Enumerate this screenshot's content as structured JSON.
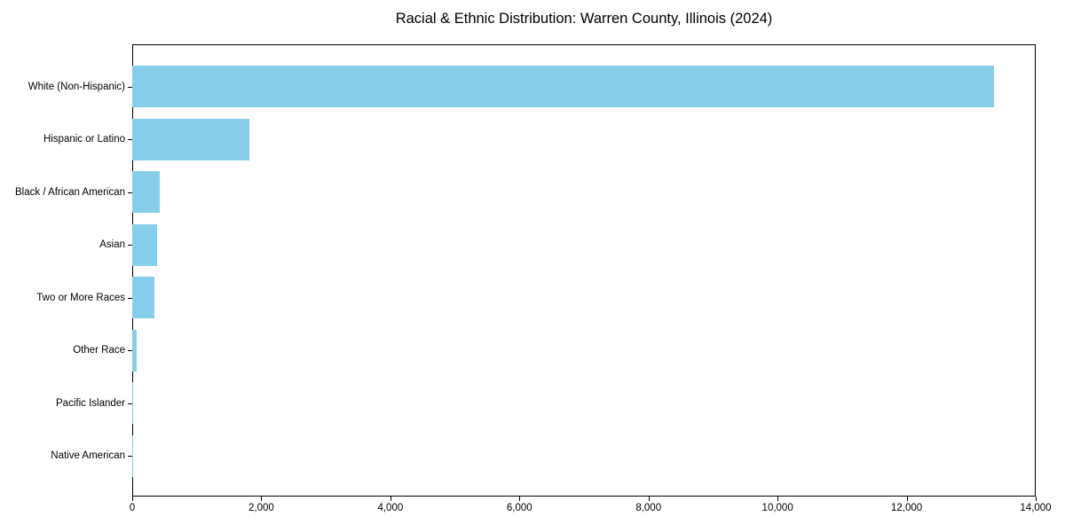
{
  "title": "Racial & Ethnic Distribution: Warren County, Illinois (2024)",
  "colors": {
    "bar": "#87CEEB",
    "axis": "#000000",
    "text": "#000000",
    "background": "#FFFFFF"
  },
  "chart_data": {
    "type": "bar",
    "orientation": "horizontal",
    "title": "Racial & Ethnic Distribution: Warren County, Illinois (2024)",
    "categories": [
      "White (Non-Hispanic)",
      "Hispanic or Latino",
      "Black / African American",
      "Asian",
      "Two or More Races",
      "Other Race",
      "Pacific Islander",
      "Native American"
    ],
    "values": [
      13350,
      1820,
      420,
      385,
      350,
      70,
      10,
      5
    ],
    "xlabel": "",
    "ylabel": "",
    "xlim": [
      0,
      14000
    ],
    "x_ticks": [
      0,
      2000,
      4000,
      6000,
      8000,
      10000,
      12000,
      14000
    ],
    "x_tick_labels": [
      "0",
      "2,000",
      "4,000",
      "6,000",
      "8,000",
      "10,000",
      "12,000",
      "14,000"
    ],
    "bar_color": "#87CEEB",
    "grid": false,
    "legend": null,
    "frame": "full-box",
    "sort_order": "descending"
  }
}
